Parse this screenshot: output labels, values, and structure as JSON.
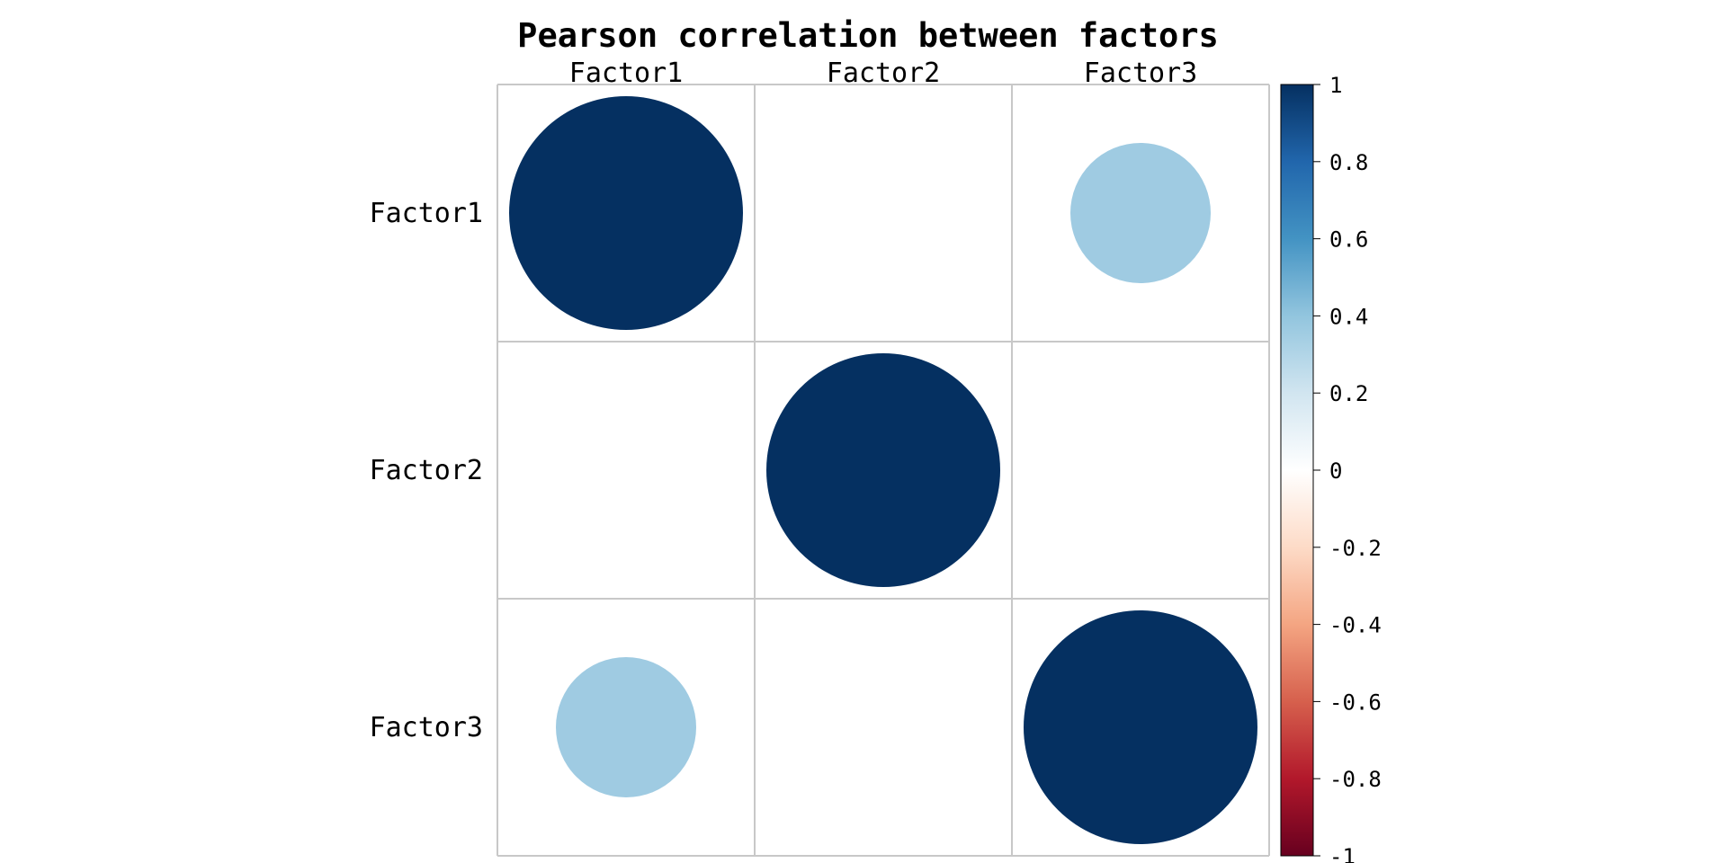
{
  "chart_data": {
    "type": "heatmap",
    "title": "Pearson correlation between factors",
    "variables": [
      "Factor1",
      "Factor2",
      "Factor3"
    ],
    "matrix": [
      [
        1.0,
        0.0,
        0.36
      ],
      [
        0.0,
        1.0,
        0.0
      ],
      [
        0.36,
        0.0,
        1.0
      ]
    ],
    "colorbar": {
      "range": [
        -1,
        1
      ],
      "ticks": [
        "1",
        "0.8",
        "0.6",
        "0.4",
        "0.2",
        "0",
        "-0.2",
        "-0.4",
        "-0.6",
        "-0.8",
        "-1"
      ],
      "tick_values": [
        1,
        0.8,
        0.6,
        0.4,
        0.2,
        0,
        -0.2,
        -0.4,
        -0.6,
        -0.8,
        -1
      ],
      "colors": [
        "#67001F",
        "#B2182B",
        "#D6604D",
        "#F4A582",
        "#FDDBC7",
        "#FFFFFF",
        "#D1E5F0",
        "#92C5DE",
        "#4393C3",
        "#2166AC",
        "#053061"
      ]
    },
    "marker": "circle",
    "grid": true
  }
}
